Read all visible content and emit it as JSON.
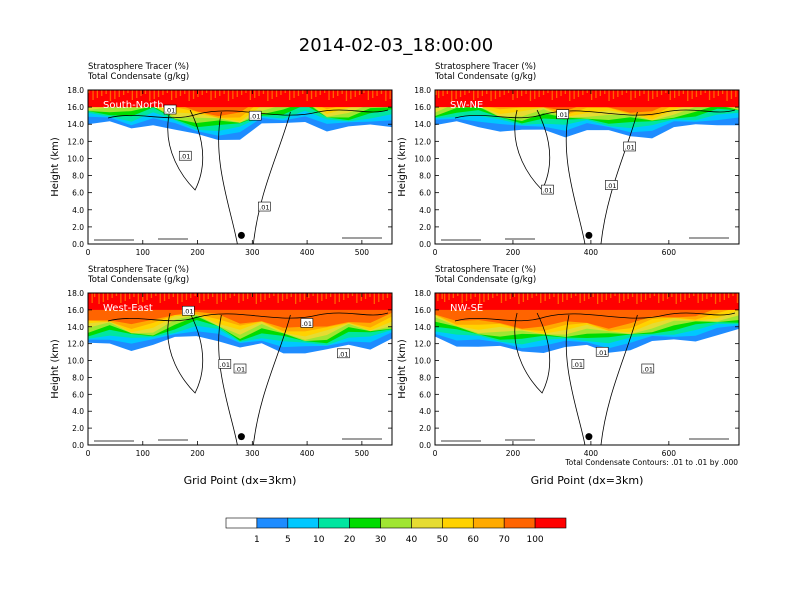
{
  "title": "2014-02-03_18:00:00",
  "panel_header": {
    "line1": "Stratosphere Tracer   (%)",
    "line2": "Total Condensate   (g/kg)"
  },
  "ylabel": "Height (km)",
  "xlabel": "Grid Point (dx=3km)",
  "contour_note": "Total Condensate Contours: .01 to .01 by .000",
  "chart_data": [
    {
      "type": "heatmap",
      "name": "South-North",
      "xlim": [
        0,
        555
      ],
      "xticks": [
        "0",
        "100",
        "200",
        "300",
        "400",
        "500"
      ],
      "ylim": [
        0,
        18
      ],
      "yticks": [
        "0.0",
        "2.0",
        "4.0",
        "6.0",
        "8.0",
        "10.0",
        "12.0",
        "14.0",
        "16.0",
        "18.0"
      ],
      "contour_labels": [
        ".01",
        ".01",
        ".01",
        ".01"
      ],
      "marker": {
        "x": 280,
        "y": 1.0
      },
      "tracer_base_km": [
        14.0,
        14.0,
        13.6,
        14.2,
        13.2,
        12.6,
        12.4,
        12.4,
        13.8,
        14.0,
        14.6,
        13.2,
        13.4,
        14.0,
        14.0
      ]
    },
    {
      "type": "heatmap",
      "name": "SW-NE",
      "xlim": [
        0,
        780
      ],
      "xticks": [
        "0",
        "200",
        "400",
        "600"
      ],
      "ylim": [
        0,
        18
      ],
      "yticks": [
        "0.0",
        "2.0",
        "4.0",
        "6.0",
        "8.0",
        "10.0",
        "12.0",
        "14.0",
        "16.0",
        "18.0"
      ],
      "contour_labels": [
        ".01",
        ".01",
        ".01",
        ".01"
      ],
      "marker": {
        "x": 395,
        "y": 1.0
      },
      "tracer_base_km": [
        13.6,
        14.2,
        14.0,
        13.2,
        13.0,
        13.4,
        12.8,
        13.2,
        13.0,
        12.8,
        12.6,
        13.4,
        13.8,
        14.2,
        14.0
      ]
    },
    {
      "type": "heatmap",
      "name": "West-East",
      "xlim": [
        0,
        555
      ],
      "xticks": [
        "0",
        "100",
        "200",
        "300",
        "400",
        "500"
      ],
      "ylim": [
        0,
        18
      ],
      "yticks": [
        "0.0",
        "2.0",
        "4.0",
        "6.0",
        "8.0",
        "10.0",
        "12.0",
        "14.0",
        "16.0",
        "18.0"
      ],
      "contour_labels": [
        ".01",
        ".01",
        ".01",
        ".01",
        ".01"
      ],
      "marker": {
        "x": 280,
        "y": 1.0
      },
      "tracer_base_km": [
        11.8,
        12.2,
        11.4,
        11.6,
        12.6,
        13.2,
        12.4,
        11.2,
        12.0,
        11.2,
        10.8,
        11.0,
        12.0,
        11.6,
        12.4
      ]
    },
    {
      "type": "heatmap",
      "name": "NW-SE",
      "xlim": [
        0,
        780
      ],
      "xticks": [
        "0",
        "200",
        "400",
        "600"
      ],
      "ylim": [
        0,
        18
      ],
      "yticks": [
        "0.0",
        "2.0",
        "4.0",
        "6.0",
        "8.0",
        "10.0",
        "12.0",
        "14.0",
        "16.0",
        "18.0"
      ],
      "contour_labels": [
        ".01",
        ".01",
        ".01"
      ],
      "marker": {
        "x": 395,
        "y": 1.0
      },
      "tracer_base_km": [
        12.8,
        12.0,
        11.6,
        11.4,
        11.2,
        11.2,
        11.4,
        11.6,
        11.2,
        11.4,
        12.0,
        12.4,
        12.6,
        13.0,
        13.4
      ]
    }
  ],
  "colorbar": {
    "colors": [
      "#ffffff",
      "#1e8cff",
      "#00c8ff",
      "#00e6a0",
      "#00dc00",
      "#a0e632",
      "#e6dc32",
      "#ffd200",
      "#ffaa00",
      "#ff6400",
      "#ff0000"
    ],
    "labels": [
      "1",
      "5",
      "10",
      "20",
      "30",
      "40",
      "50",
      "60",
      "70",
      "100"
    ]
  }
}
